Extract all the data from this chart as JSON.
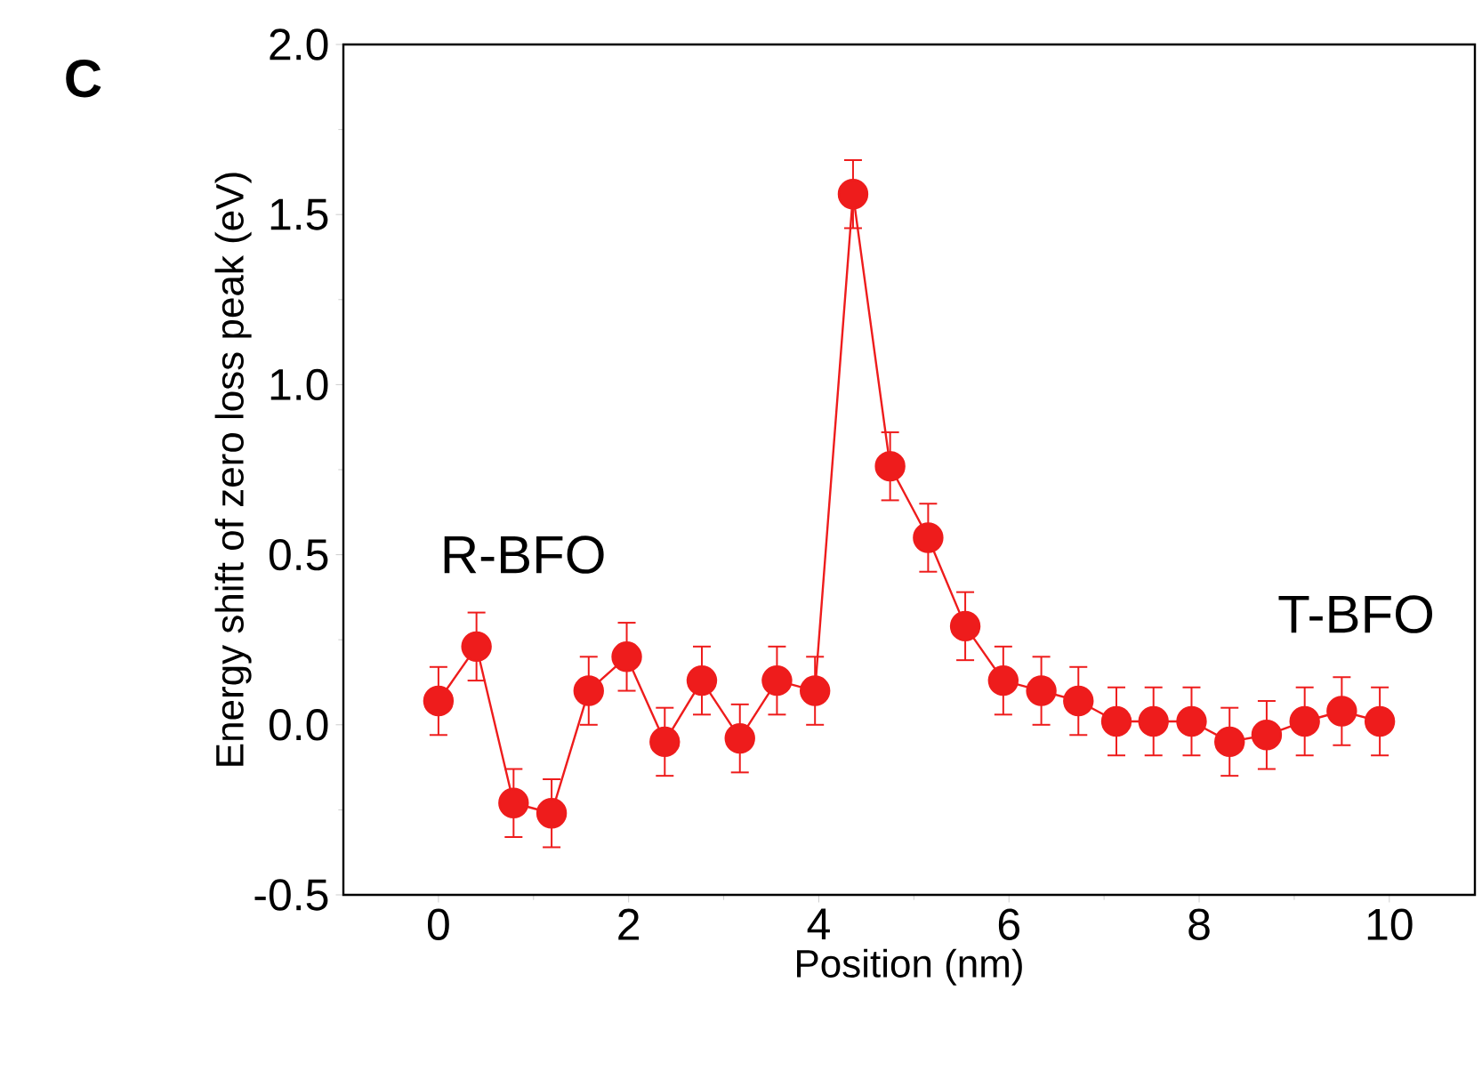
{
  "chart_data": {
    "type": "line",
    "xlabel": "Position (nm)",
    "ylabel": "Energy shift of zero loss peak (eV)",
    "annotations": [
      "C",
      "R-BFO",
      "T-BFO"
    ],
    "x": [
      0,
      0.4,
      0.79,
      1.19,
      1.58,
      1.98,
      2.38,
      2.77,
      3.17,
      3.56,
      3.96,
      4.36,
      4.75,
      5.15,
      5.54,
      5.94,
      6.34,
      6.73,
      7.13,
      7.52,
      7.92,
      8.32,
      8.71,
      9.11,
      9.5,
      9.9
    ],
    "series": [
      {
        "color": "#ee1c1c",
        "values": [
          0.07,
          0.23,
          -0.23,
          -0.26,
          0.1,
          0.2,
          -0.05,
          0.13,
          -0.04,
          0.13,
          0.1,
          1.56,
          0.76,
          0.55,
          0.29,
          0.13,
          0.1,
          0.07,
          0.01,
          0.01,
          0.01,
          -0.05,
          -0.03,
          0.01,
          0.04,
          0.01
        ],
        "errors": [
          0.1,
          0.1,
          0.1,
          0.1,
          0.1,
          0.1,
          0.1,
          0.1,
          0.1,
          0.1,
          0.1,
          0.1,
          0.1,
          0.1,
          0.1,
          0.1,
          0.1,
          0.1,
          0.1,
          0.1,
          0.1,
          0.1,
          0.1,
          0.1,
          0.1,
          0.1
        ]
      }
    ],
    "marker": "circle",
    "line_style": "solid",
    "xlim": [
      -1,
      10.9
    ],
    "ylim": [
      -0.5,
      2.0
    ],
    "xticks": [
      0,
      2,
      4,
      6,
      8,
      10
    ],
    "yticks": [
      {
        "value": -0.5,
        "label": "-0.5"
      },
      {
        "value": 0,
        "label": "0.0"
      },
      {
        "value": 0.5,
        "label": "0.5"
      },
      {
        "value": 1,
        "label": "1.0"
      },
      {
        "value": 1.5,
        "label": "1.5"
      },
      {
        "value": 2,
        "label": "2.0"
      }
    ]
  }
}
